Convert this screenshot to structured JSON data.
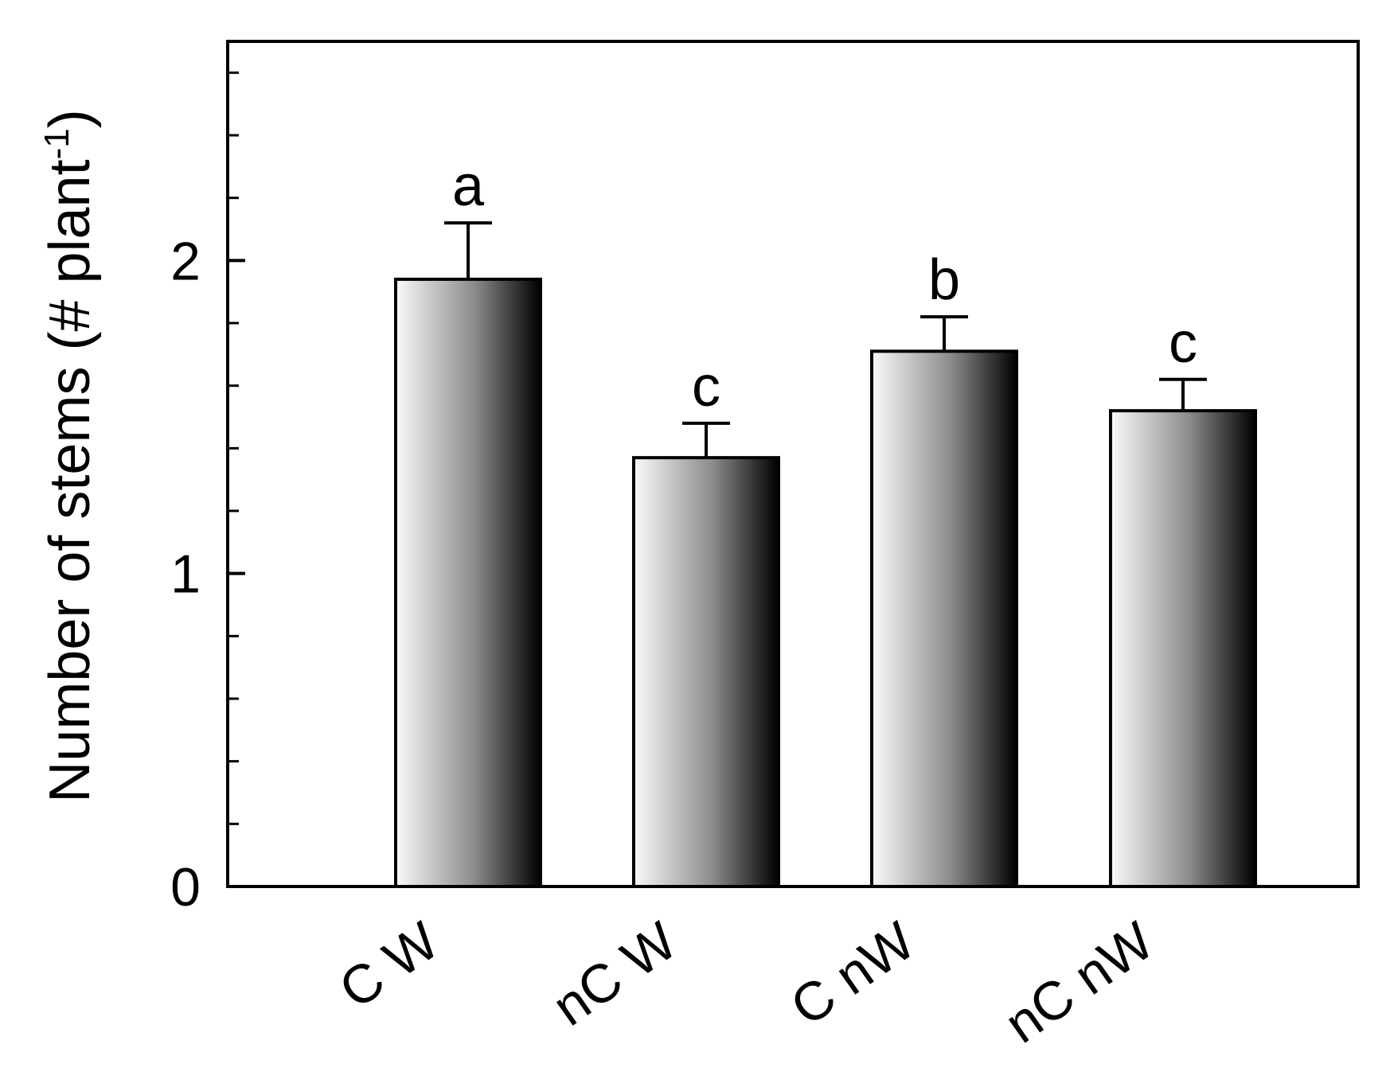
{
  "chart_data": {
    "type": "bar",
    "categories": [
      "C W",
      "nC W",
      "C nW",
      "nC nW"
    ],
    "values": [
      1.94,
      1.37,
      1.71,
      1.52
    ],
    "error_upper": [
      2.12,
      1.48,
      1.82,
      1.62
    ],
    "significance_letters": [
      "a",
      "c",
      "b",
      "c"
    ],
    "ylabel_main": "Number of stems (# plant",
    "ylabel_sup": "-1",
    "ylabel_close": ")",
    "xlabel": "",
    "ylim": [
      0,
      2.7
    ],
    "major_ticks": [
      0,
      1,
      2
    ],
    "major_tick_labels": [
      "0",
      "1",
      "2"
    ],
    "minor_ticks": [
      0.2,
      0.4,
      0.6,
      0.8,
      1.2,
      1.4,
      1.6,
      1.8,
      2.2,
      2.4,
      2.6
    ],
    "grid": false,
    "bar_fill": "horizontal gradient light gray to black",
    "colors": {
      "gradient_start": "#fafafa",
      "gradient_mid": "#8a8a8a",
      "gradient_end": "#000000",
      "axis": "#000000"
    }
  }
}
